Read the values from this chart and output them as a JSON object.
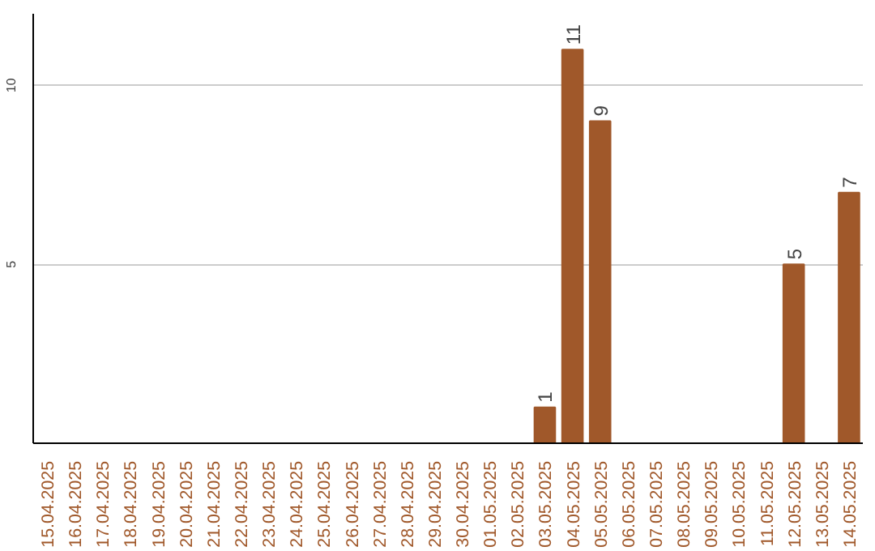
{
  "chart_data": {
    "type": "bar",
    "categories": [
      "15.04.2025",
      "16.04.2025",
      "17.04.2025",
      "18.04.2025",
      "19.04.2025",
      "20.04.2025",
      "21.04.2025",
      "22.04.2025",
      "23.04.2025",
      "24.04.2025",
      "25.04.2025",
      "26.04.2025",
      "27.04.2025",
      "28.04.2025",
      "29.04.2025",
      "30.04.2025",
      "01.05.2025",
      "02.05.2025",
      "03.05.2025",
      "04.05.2025",
      "05.05.2025",
      "06.05.2025",
      "07.05.2025",
      "08.05.2025",
      "09.05.2025",
      "10.05.2025",
      "11.05.2025",
      "12.05.2025",
      "13.05.2025",
      "14.05.2025"
    ],
    "values": [
      0,
      0,
      0,
      0,
      0,
      0,
      0,
      0,
      0,
      0,
      0,
      0,
      0,
      0,
      0,
      0,
      0,
      0,
      1,
      11,
      9,
      0,
      0,
      0,
      0,
      0,
      0,
      5,
      0,
      7
    ],
    "value_labels": [
      null,
      null,
      null,
      null,
      null,
      null,
      null,
      null,
      null,
      null,
      null,
      null,
      null,
      null,
      null,
      null,
      null,
      null,
      "1",
      "11",
      "9",
      null,
      null,
      null,
      null,
      null,
      null,
      "5",
      null,
      "7"
    ],
    "color": "#a0582a",
    "ylim": [
      0,
      12
    ],
    "yticks": [
      5,
      10
    ],
    "grid": "y"
  }
}
